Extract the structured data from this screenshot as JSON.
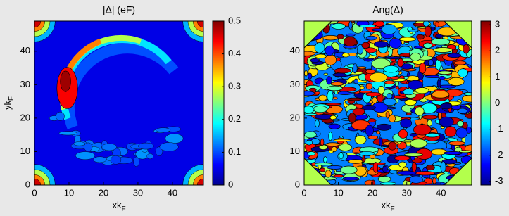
{
  "chart_data": [
    {
      "type": "contour",
      "title": "|Δ| (eF)",
      "x_label": "xkF",
      "y_label": "ykF",
      "xlim": [
        0,
        49
      ],
      "ylim": [
        0,
        49
      ],
      "xticks": [
        0,
        10,
        20,
        30,
        40
      ],
      "yticks": [
        0,
        10,
        20,
        30,
        40
      ],
      "clim": [
        0,
        0.5
      ],
      "cticks": [
        0,
        0.1,
        0.2,
        0.3,
        0.4,
        0.5
      ],
      "colormap": "jet"
    },
    {
      "type": "contour",
      "title": "Ang(Δ)",
      "x_label": "xkF",
      "xlim": [
        0,
        49
      ],
      "ylim": [
        0,
        49
      ],
      "xticks": [
        0,
        10,
        20,
        30,
        40
      ],
      "yticks": [
        0,
        10,
        20,
        30,
        40
      ],
      "clim": [
        -3.14,
        3.14
      ],
      "cticks": [
        -3,
        -2,
        -1,
        0,
        1,
        2,
        3
      ],
      "colormap": "jet"
    }
  ]
}
